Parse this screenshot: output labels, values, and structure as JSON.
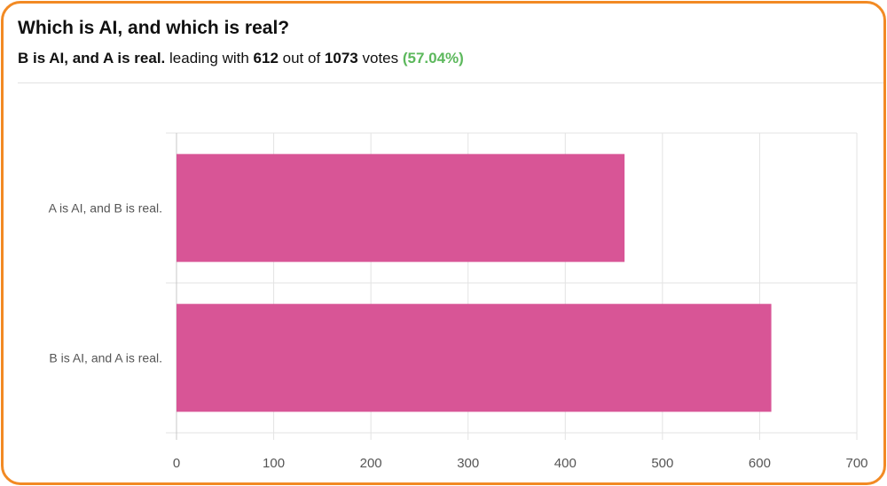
{
  "poll": {
    "question": "Which is AI, and which is real?",
    "leader": "B is AI, and A is real.",
    "leading_text": "leading with",
    "leader_votes": "612",
    "out_of_text": "out of",
    "total_votes": "1073",
    "votes_text": "votes",
    "percent": "(57.04%)"
  },
  "colors": {
    "accent_border": "#f28a24",
    "bar": "#d85596",
    "percent": "#5cb85c"
  },
  "chart_data": {
    "type": "bar",
    "orientation": "horizontal",
    "categories": [
      "A is AI, and B is real.",
      "B is AI, and A is real."
    ],
    "values": [
      461,
      612
    ],
    "xlim": [
      0,
      700
    ],
    "xticks": [
      0,
      100,
      200,
      300,
      400,
      500,
      600,
      700
    ],
    "grid": true,
    "title": "",
    "xlabel": "",
    "ylabel": ""
  }
}
